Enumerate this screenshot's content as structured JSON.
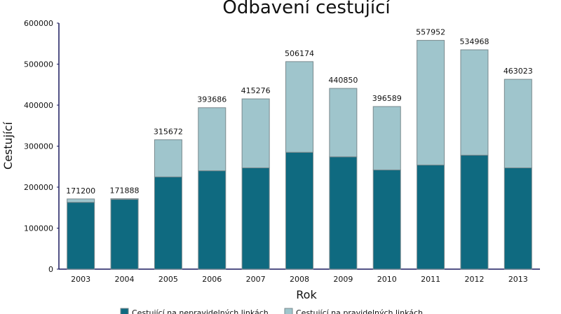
{
  "chart_data": {
    "type": "bar",
    "stacked": true,
    "title": "Odbavení cestující",
    "xlabel": "Rok",
    "ylabel": "Cestující",
    "ylim": [
      0,
      600000
    ],
    "yticks": [
      0,
      100000,
      200000,
      300000,
      400000,
      500000,
      600000
    ],
    "grid": false,
    "legend_placement": "bottom",
    "categories": [
      "2003",
      "2004",
      "2005",
      "2006",
      "2007",
      "2008",
      "2009",
      "2010",
      "2011",
      "2012",
      "2013"
    ],
    "totals": [
      171200,
      171888,
      315672,
      393686,
      415276,
      506174,
      440850,
      396589,
      557952,
      534968,
      463023
    ],
    "series": [
      {
        "name": "Cestující na nepravidelných linkách",
        "color": "#0f6a80",
        "values": [
          163000,
          170000,
          225000,
          240000,
          247000,
          285000,
          274000,
          242000,
          254000,
          278000,
          247000
        ]
      },
      {
        "name": "Cestující na pravidelných linkách",
        "color": "#9fc5cc",
        "values": [
          8200,
          1888,
          90672,
          153686,
          168276,
          221174,
          166850,
          154589,
          303952,
          256968,
          216023
        ]
      }
    ]
  }
}
